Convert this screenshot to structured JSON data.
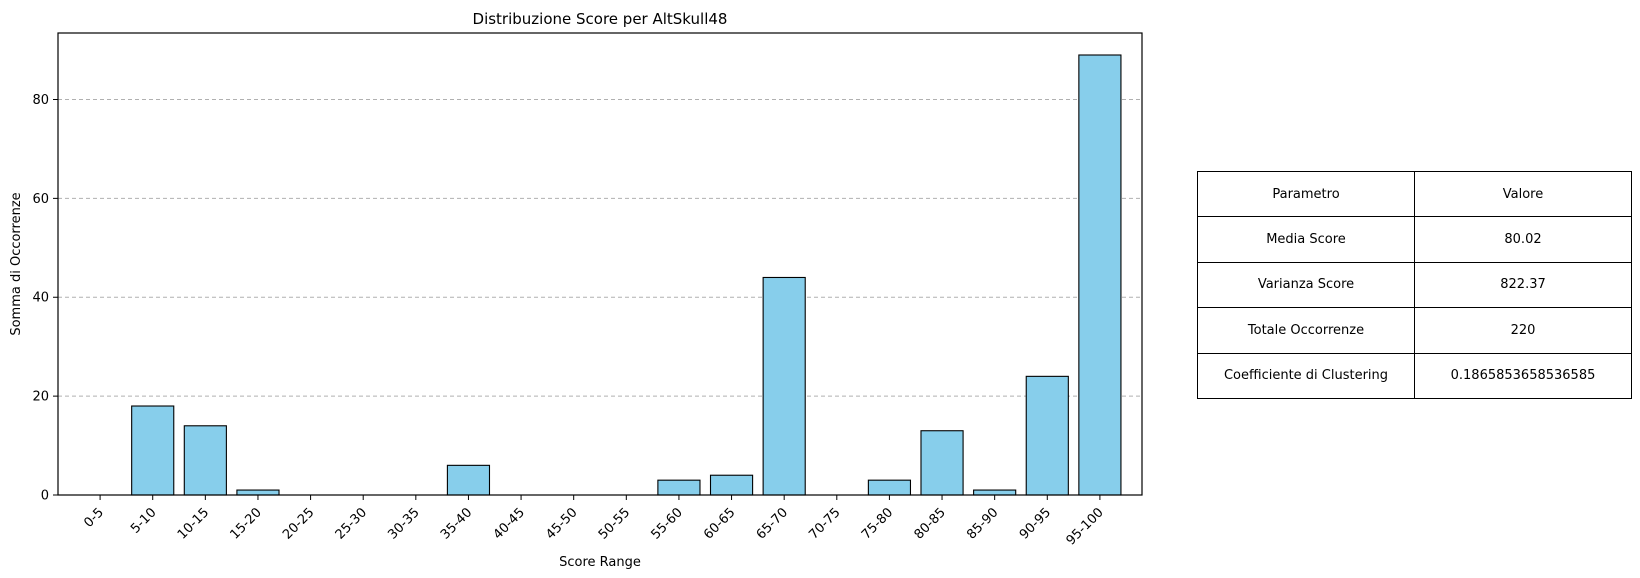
{
  "chart_data": {
    "type": "bar",
    "title": "Distribuzione Score per AltSkull48",
    "xlabel": "Score Range",
    "ylabel": "Somma di Occorrenze",
    "categories": [
      "0-5",
      "5-10",
      "10-15",
      "15-20",
      "20-25",
      "25-30",
      "30-35",
      "35-40",
      "40-45",
      "45-50",
      "50-55",
      "55-60",
      "60-65",
      "65-70",
      "70-75",
      "75-80",
      "80-85",
      "85-90",
      "90-95",
      "95-100"
    ],
    "values": [
      0,
      18,
      14,
      1,
      0,
      0,
      0,
      6,
      0,
      0,
      0,
      3,
      4,
      44,
      0,
      3,
      13,
      1,
      24,
      89
    ],
    "ylim": [
      0,
      93.45
    ],
    "yticks": [
      0,
      20,
      40,
      60,
      80
    ],
    "ytick_labels": [
      "0",
      "20",
      "40",
      "60",
      "80"
    ],
    "grid": "y-dashed",
    "bar_color": "#87CEEB",
    "edge_color": "#000000"
  },
  "table": {
    "header": [
      "Parametro",
      "Valore"
    ],
    "rows": [
      [
        "Media Score",
        "80.02"
      ],
      [
        "Varianza Score",
        "822.37"
      ],
      [
        "Totale Occorrenze",
        "220"
      ],
      [
        "Coefficiente di Clustering",
        "0.1865853658536585"
      ]
    ]
  }
}
